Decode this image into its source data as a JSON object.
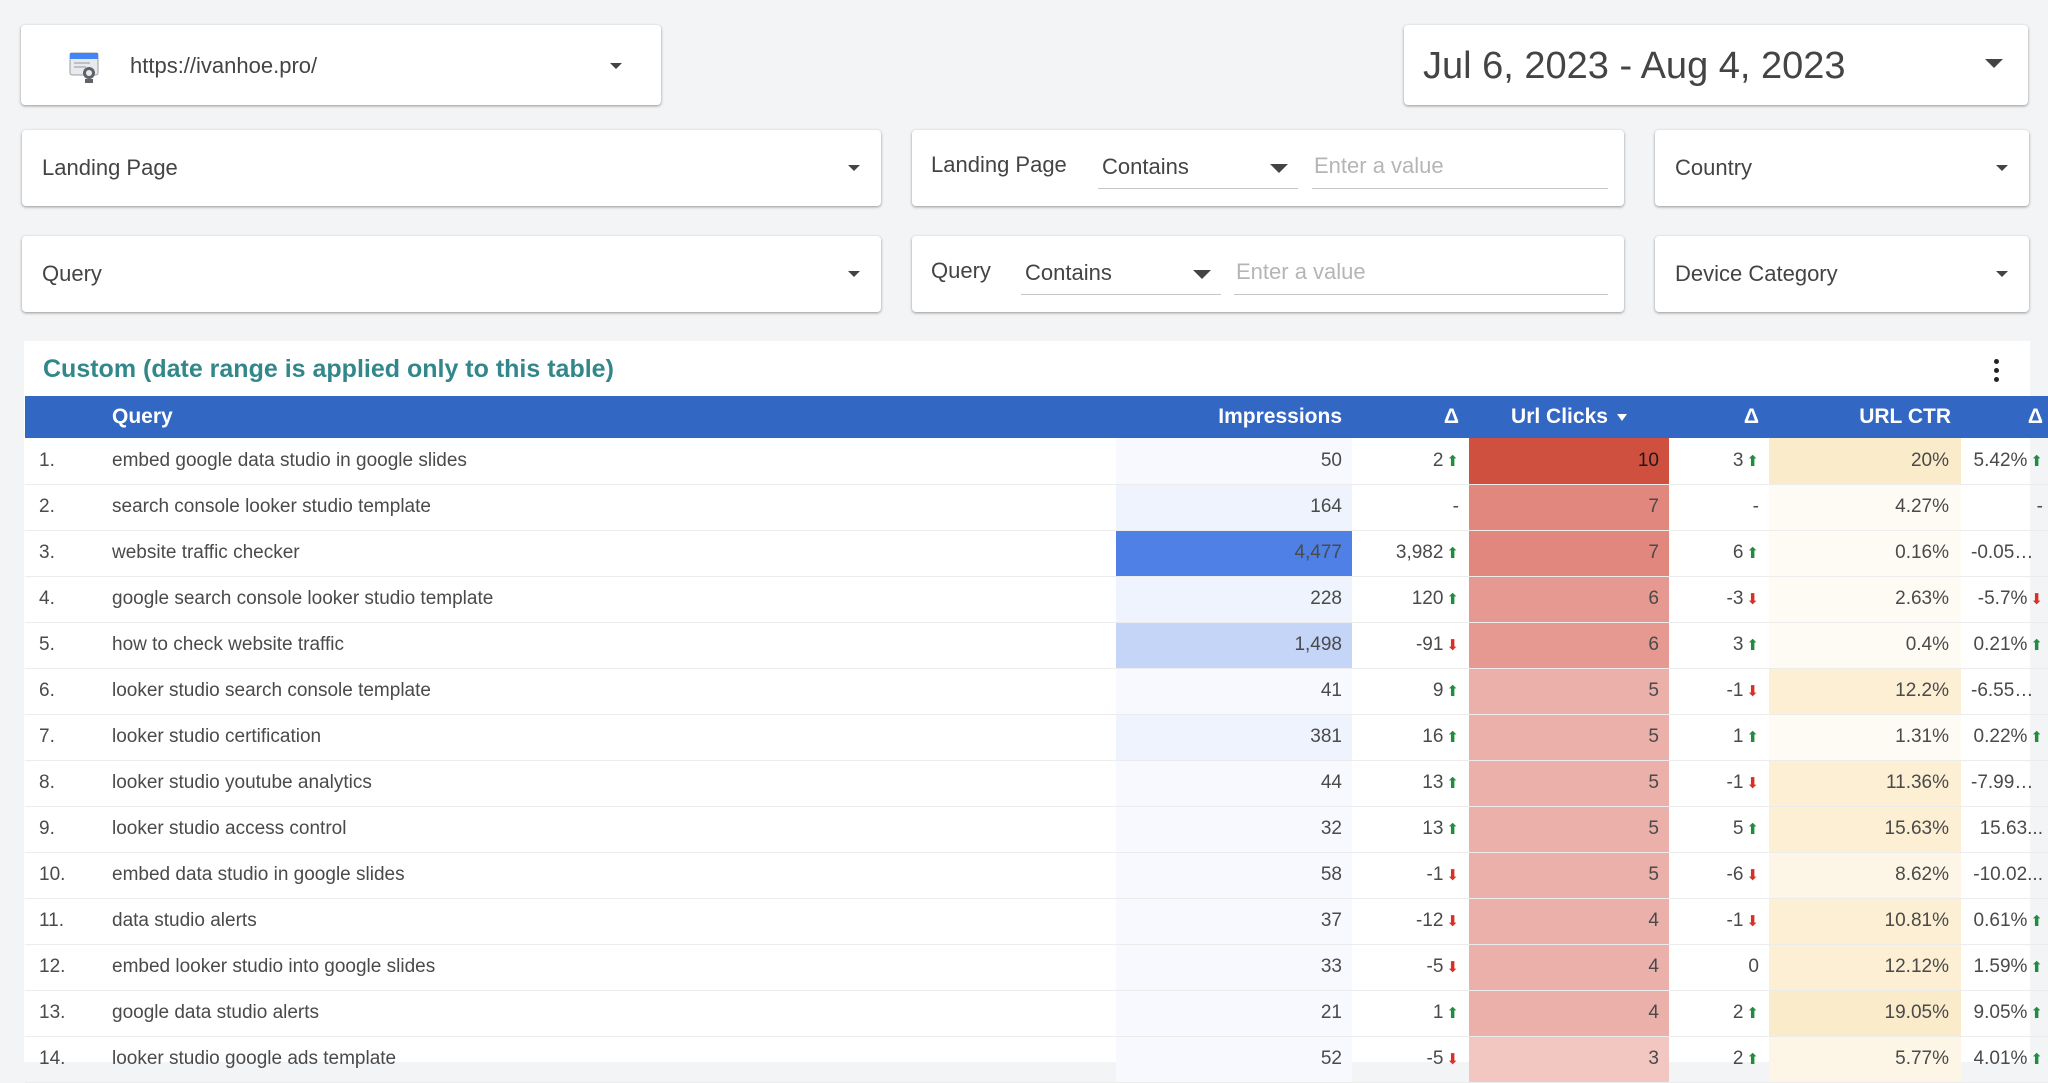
{
  "site_selector": {
    "url": "https://ivanhoe.pro/"
  },
  "date_range": {
    "label": "Jul 6, 2023 - Aug 4, 2023"
  },
  "filters": {
    "landing_page_dropdown": "Landing Page",
    "landing_page_filter": {
      "label": "Landing Page",
      "operator": "Contains",
      "placeholder": "Enter a value"
    },
    "country_dropdown": "Country",
    "query_dropdown": "Query",
    "query_filter": {
      "label": "Query",
      "operator": "Contains",
      "placeholder": "Enter a value"
    },
    "device_dropdown": "Device Category"
  },
  "table": {
    "title": "Custom (date range is applied only to this table)",
    "headers": {
      "query": "Query",
      "impressions": "Impressions",
      "delta1": "Δ",
      "url_clicks": "Url Clicks",
      "delta2": "Δ",
      "url_ctr": "URL CTR",
      "delta3": "Δ"
    },
    "rows": [
      {
        "num": "1.",
        "query": "embed google data studio in google slides",
        "impressions": "50",
        "imp_delta": "2",
        "imp_dir": "up",
        "clicks": "10",
        "clk_delta": "3",
        "clk_dir": "up",
        "ctr": "20%",
        "ctr_delta": "5.42%",
        "ctr_dir": "up"
      },
      {
        "num": "2.",
        "query": "search console looker studio template",
        "impressions": "164",
        "imp_delta": "-",
        "imp_dir": "",
        "clicks": "7",
        "clk_delta": "-",
        "clk_dir": "",
        "ctr": "4.27%",
        "ctr_delta": "-",
        "ctr_dir": ""
      },
      {
        "num": "3.",
        "query": "website traffic checker",
        "impressions": "4,477",
        "imp_delta": "3,982",
        "imp_dir": "up",
        "clicks": "7",
        "clk_delta": "6",
        "clk_dir": "up",
        "ctr": "0.16%",
        "ctr_delta": "-0.05%...",
        "ctr_dir": ""
      },
      {
        "num": "4.",
        "query": "google search console looker studio template",
        "impressions": "228",
        "imp_delta": "120",
        "imp_dir": "up",
        "clicks": "6",
        "clk_delta": "-3",
        "clk_dir": "down",
        "ctr": "2.63%",
        "ctr_delta": "-5.7%",
        "ctr_dir": "down"
      },
      {
        "num": "5.",
        "query": "how to check website traffic",
        "impressions": "1,498",
        "imp_delta": "-91",
        "imp_dir": "down",
        "clicks": "6",
        "clk_delta": "3",
        "clk_dir": "up",
        "ctr": "0.4%",
        "ctr_delta": "0.21%",
        "ctr_dir": "up"
      },
      {
        "num": "6.",
        "query": "looker studio search console template",
        "impressions": "41",
        "imp_delta": "9",
        "imp_dir": "up",
        "clicks": "5",
        "clk_delta": "-1",
        "clk_dir": "down",
        "ctr": "12.2%",
        "ctr_delta": "-6.55%...",
        "ctr_dir": ""
      },
      {
        "num": "7.",
        "query": "looker studio certification",
        "impressions": "381",
        "imp_delta": "16",
        "imp_dir": "up",
        "clicks": "5",
        "clk_delta": "1",
        "clk_dir": "up",
        "ctr": "1.31%",
        "ctr_delta": "0.22%",
        "ctr_dir": "up"
      },
      {
        "num": "8.",
        "query": "looker studio youtube analytics",
        "impressions": "44",
        "imp_delta": "13",
        "imp_dir": "up",
        "clicks": "5",
        "clk_delta": "-1",
        "clk_dir": "down",
        "ctr": "11.36%",
        "ctr_delta": "-7.99%...",
        "ctr_dir": ""
      },
      {
        "num": "9.",
        "query": "looker studio access control",
        "impressions": "32",
        "imp_delta": "13",
        "imp_dir": "up",
        "clicks": "5",
        "clk_delta": "5",
        "clk_dir": "up",
        "ctr": "15.63%",
        "ctr_delta": "15.63...",
        "ctr_dir": ""
      },
      {
        "num": "10.",
        "query": "embed data studio in google slides",
        "impressions": "58",
        "imp_delta": "-1",
        "imp_dir": "down",
        "clicks": "5",
        "clk_delta": "-6",
        "clk_dir": "down",
        "ctr": "8.62%",
        "ctr_delta": "-10.02...",
        "ctr_dir": ""
      },
      {
        "num": "11.",
        "query": "data studio alerts",
        "impressions": "37",
        "imp_delta": "-12",
        "imp_dir": "down",
        "clicks": "4",
        "clk_delta": "-1",
        "clk_dir": "down",
        "ctr": "10.81%",
        "ctr_delta": "0.61%",
        "ctr_dir": "up"
      },
      {
        "num": "12.",
        "query": "embed looker studio into google slides",
        "impressions": "33",
        "imp_delta": "-5",
        "imp_dir": "down",
        "clicks": "4",
        "clk_delta": "0",
        "clk_dir": "",
        "ctr": "12.12%",
        "ctr_delta": "1.59%",
        "ctr_dir": "up"
      },
      {
        "num": "13.",
        "query": "google data studio alerts",
        "impressions": "21",
        "imp_delta": "1",
        "imp_dir": "up",
        "clicks": "4",
        "clk_delta": "2",
        "clk_dir": "up",
        "ctr": "19.05%",
        "ctr_delta": "9.05%",
        "ctr_dir": "up"
      },
      {
        "num": "14.",
        "query": "looker studio google ads template",
        "impressions": "52",
        "imp_delta": "-5",
        "imp_dir": "down",
        "clicks": "3",
        "clk_delta": "2",
        "clk_dir": "up",
        "ctr": "5.77%",
        "ctr_delta": "4.01%",
        "ctr_dir": "up"
      }
    ]
  },
  "colors": {
    "header_bg": "#3367c4",
    "title": "#32878a",
    "impressions_heat": [
      "#f7f9fe",
      "#eef3fd",
      "#c5d5f7",
      "#4e80e6"
    ],
    "clicks_heat": [
      "#f2c7c2",
      "#eab0a9",
      "#e59990",
      "#e2877d",
      "#d0503f"
    ],
    "ctr_heat": [
      "#fefbf4",
      "#fdf6e6",
      "#fcefd3",
      "#faebcb"
    ],
    "up": "#1e8e3e",
    "down": "#d93025"
  }
}
